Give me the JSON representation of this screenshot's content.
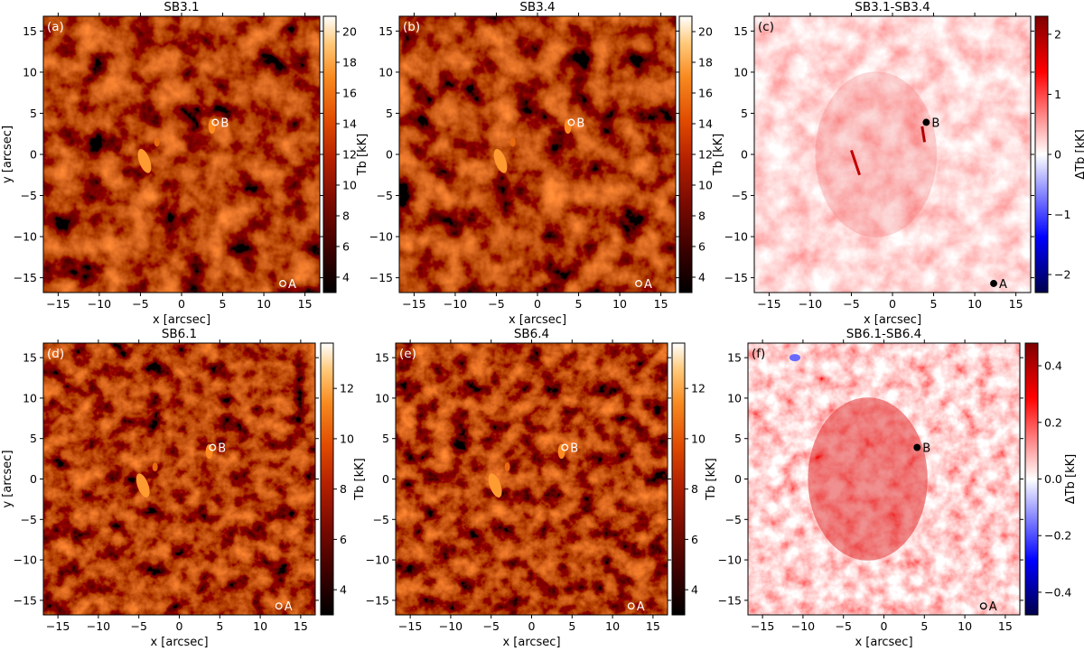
{
  "chart_data": [
    {
      "type": "heatmap",
      "panel_label": "(a)",
      "title": "SB3.1",
      "xlabel": "x [arcsec]",
      "ylabel": "y [arcsec]",
      "xlim": [
        -16.8,
        16.8
      ],
      "ylim": [
        -16.8,
        16.8
      ],
      "xticks": [
        "−15",
        "−10",
        "−5",
        "0",
        "5",
        "10",
        "15"
      ],
      "yticks": [
        "−15",
        "−10",
        "−5",
        "0",
        "5",
        "10",
        "15"
      ],
      "colorbar": {
        "label": "Tb [kK]",
        "range": [
          3,
          21
        ],
        "ticks": [
          "4",
          "6",
          "8",
          "10",
          "12",
          "14",
          "16",
          "18",
          "20"
        ],
        "colormap": "gist_heat"
      },
      "markers": [
        {
          "name": "A",
          "x": 12.3,
          "y": -15.7
        },
        {
          "name": "B",
          "x": 4.1,
          "y": 3.9
        }
      ]
    },
    {
      "type": "heatmap",
      "panel_label": "(b)",
      "title": "SB3.4",
      "xlabel": "x [arcsec]",
      "ylabel": "",
      "xlim": [
        -16.8,
        16.8
      ],
      "ylim": [
        -16.8,
        16.8
      ],
      "xticks": [
        "−15",
        "−10",
        "−5",
        "0",
        "5",
        "10",
        "15"
      ],
      "yticks": [
        "−15",
        "−10",
        "−5",
        "0",
        "5",
        "10",
        "15"
      ],
      "colorbar": {
        "label": "Tb [kK]",
        "range": [
          3,
          21
        ],
        "ticks": [
          "4",
          "6",
          "8",
          "10",
          "12",
          "14",
          "16",
          "18",
          "20"
        ],
        "colormap": "gist_heat"
      },
      "markers": [
        {
          "name": "A",
          "x": 12.3,
          "y": -15.7
        },
        {
          "name": "B",
          "x": 4.1,
          "y": 3.9
        }
      ]
    },
    {
      "type": "heatmap",
      "panel_label": "(c)",
      "title": "SB3.1-SB3.4",
      "xlabel": "x [arcsec]",
      "ylabel": "",
      "xlim": [
        -16.8,
        16.8
      ],
      "ylim": [
        -16.8,
        16.8
      ],
      "xticks": [
        "−15",
        "−10",
        "−5",
        "0",
        "5",
        "10",
        "15"
      ],
      "yticks": [
        "−15",
        "−10",
        "−5",
        "0",
        "5",
        "10",
        "15"
      ],
      "colorbar": {
        "label": "ΔTb [kK]",
        "range": [
          -2.3,
          2.3
        ],
        "ticks": [
          "−2",
          "−1",
          "0",
          "1",
          "2"
        ],
        "colormap": "seismic"
      },
      "markers": [
        {
          "name": "A",
          "x": 12.3,
          "y": -15.7
        },
        {
          "name": "B",
          "x": 4.1,
          "y": 3.9
        }
      ]
    },
    {
      "type": "heatmap",
      "panel_label": "(d)",
      "title": "SB6.1",
      "xlabel": "x [arcsec]",
      "ylabel": "y [arcsec]",
      "xlim": [
        -16.8,
        16.8
      ],
      "ylim": [
        -16.8,
        16.8
      ],
      "xticks": [
        "−15",
        "−10",
        "−5",
        "0",
        "5",
        "10",
        "15"
      ],
      "yticks": [
        "−15",
        "−10",
        "−5",
        "0",
        "5",
        "10",
        "15"
      ],
      "colorbar": {
        "label": "Tb [kK]",
        "range": [
          3,
          13.8
        ],
        "ticks": [
          "4",
          "6",
          "8",
          "10",
          "12"
        ],
        "colormap": "gist_heat"
      },
      "markers": [
        {
          "name": "A",
          "x": 12.3,
          "y": -15.7
        },
        {
          "name": "B",
          "x": 4.1,
          "y": 3.9
        }
      ]
    },
    {
      "type": "heatmap",
      "panel_label": "(e)",
      "title": "SB6.4",
      "xlabel": "x [arcsec]",
      "ylabel": "",
      "xlim": [
        -16.8,
        16.8
      ],
      "ylim": [
        -16.8,
        16.8
      ],
      "xticks": [
        "−15",
        "−10",
        "−5",
        "0",
        "5",
        "10",
        "15"
      ],
      "yticks": [
        "−15",
        "−10",
        "−5",
        "0",
        "5",
        "10",
        "15"
      ],
      "colorbar": {
        "label": "Tb [kK]",
        "range": [
          3,
          13.8
        ],
        "ticks": [
          "4",
          "6",
          "8",
          "10",
          "12"
        ],
        "colormap": "gist_heat"
      },
      "markers": [
        {
          "name": "A",
          "x": 12.3,
          "y": -15.7
        },
        {
          "name": "B",
          "x": 4.1,
          "y": 3.9
        }
      ]
    },
    {
      "type": "heatmap",
      "panel_label": "(f)",
      "title": "SB6.1-SB6.4",
      "xlabel": "x [arcsec]",
      "ylabel": "",
      "xlim": [
        -16.8,
        16.8
      ],
      "ylim": [
        -16.8,
        16.8
      ],
      "xticks": [
        "−15",
        "−10",
        "−5",
        "0",
        "5",
        "10",
        "15"
      ],
      "yticks": [
        "−15",
        "−10",
        "−5",
        "0",
        "5",
        "10",
        "15"
      ],
      "colorbar": {
        "label": "ΔTb [kK]",
        "range": [
          -0.48,
          0.48
        ],
        "ticks": [
          "−0.4",
          "−0.2",
          "0.0",
          "0.2",
          "0.4"
        ],
        "colormap": "seismic"
      },
      "markers": [
        {
          "name": "A",
          "x": 12.3,
          "y": -15.7
        },
        {
          "name": "B",
          "x": 4.1,
          "y": 3.9
        }
      ]
    }
  ]
}
